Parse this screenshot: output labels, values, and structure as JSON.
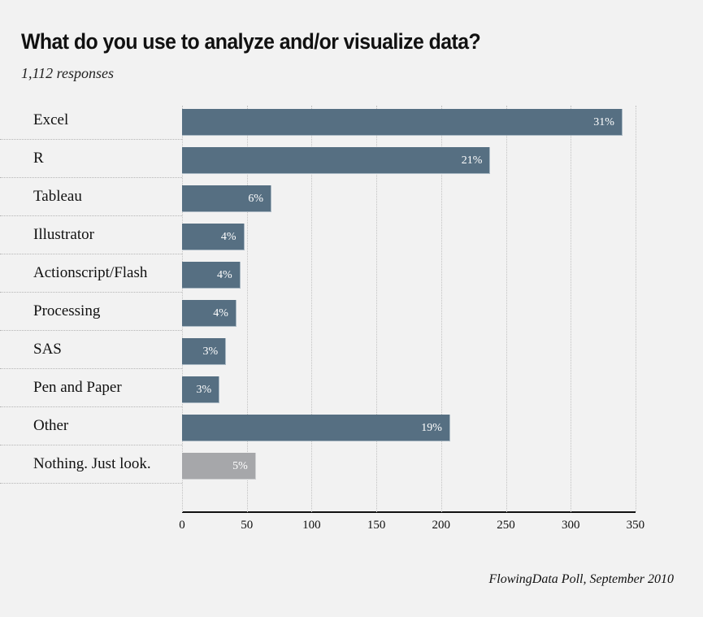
{
  "header": {
    "title": "What do you use to analyze and/or visualize data?",
    "subtitle": "1,112 responses"
  },
  "footer": {
    "source": "FlowingData Poll, September 2010"
  },
  "colors": {
    "background": "#f2f2f2",
    "bar": "#566f82",
    "bar_muted": "#a6a7aa",
    "text": "#111111"
  },
  "chart_data": {
    "type": "bar",
    "orientation": "horizontal",
    "title": "What do you use to analyze and/or visualize data?",
    "subtitle": "1,112 responses",
    "source": "FlowingData Poll, September 2010",
    "xlabel": "",
    "ylabel": "",
    "xlim": [
      0,
      350
    ],
    "xticks": [
      0,
      50,
      100,
      150,
      200,
      250,
      300,
      350
    ],
    "grid": true,
    "legend": null,
    "categories": [
      "Excel",
      "R",
      "Tableau",
      "Illustrator",
      "Actionscript/Flash",
      "Processing",
      "SAS",
      "Pen and Paper",
      "Other",
      "Nothing. Just look."
    ],
    "values": [
      340,
      238,
      69,
      48,
      45,
      42,
      34,
      29,
      207,
      57
    ],
    "data_labels": [
      "31%",
      "21%",
      "6%",
      "4%",
      "4%",
      "4%",
      "3%",
      "3%",
      "19%",
      "5%"
    ],
    "highlight": [
      false,
      false,
      false,
      false,
      false,
      false,
      false,
      false,
      false,
      true
    ]
  }
}
